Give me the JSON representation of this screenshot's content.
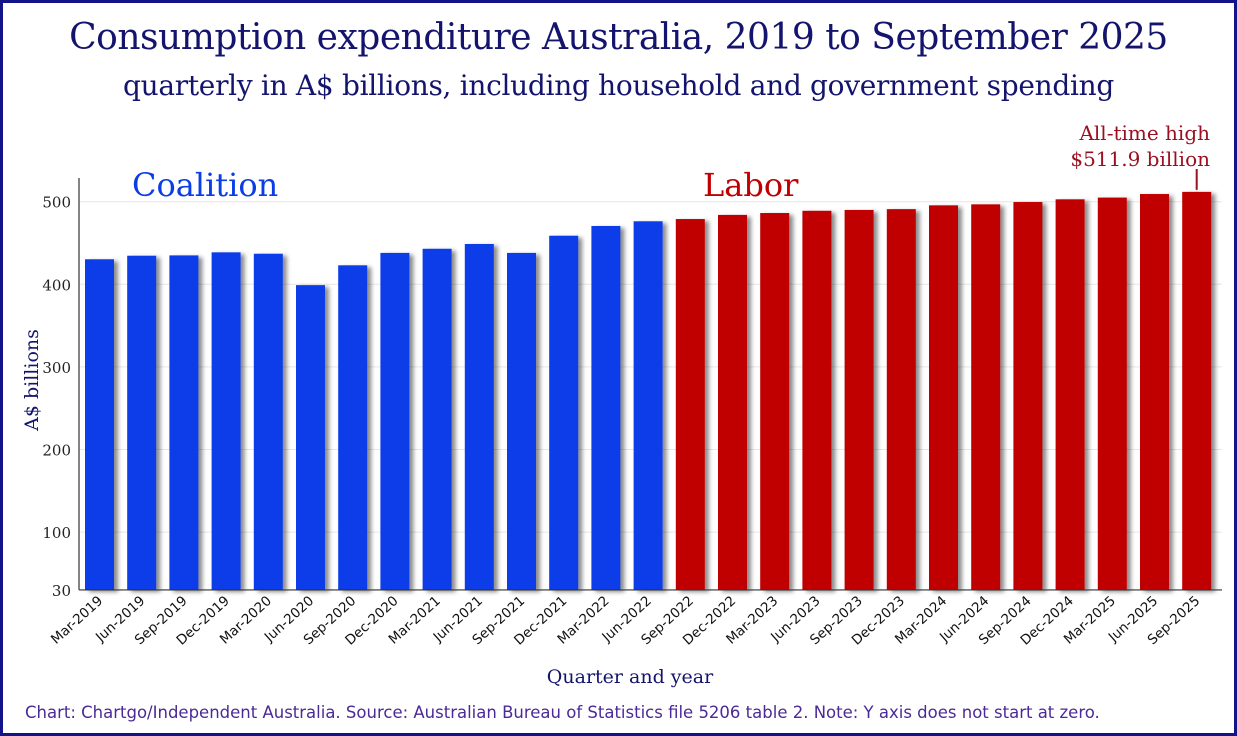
{
  "title": "Consumption expenditure Australia, 2019 to September 2025",
  "subtitle": "quarterly in A$ billions, including household and government spending",
  "footer": "Chart: Chartgo/Independent Australia. Source: Australian Bureau of Statistics file 5206 table 2. Note: Y axis does not start at zero.",
  "colors": {
    "coalition": "#0a3de8",
    "labor": "#c00000",
    "text": "#14146e",
    "annotation": "#9b1020",
    "footer": "#4b2a96"
  },
  "chart_data": {
    "type": "bar",
    "xlabel": "Quarter and year",
    "ylabel": "A$ billions",
    "ylim": [
      30,
      530
    ],
    "yticks": [
      30,
      100,
      200,
      300,
      400,
      500
    ],
    "grid": true,
    "categories": [
      "Mar-2019",
      "Jun-2019",
      "Sep-2019",
      "Dec-2019",
      "Mar-2020",
      "Jun-2020",
      "Sep-2020",
      "Dec-2020",
      "Mar-2021",
      "Jun-2021",
      "Sep-2021",
      "Dec-2021",
      "Mar-2022",
      "Jun-2022",
      "Sep-2022",
      "Dec-2022",
      "Mar-2023",
      "Jun-2023",
      "Sep-2023",
      "Dec-2023",
      "Mar-2024",
      "Jun-2024",
      "Sep-2024",
      "Dec-2024",
      "Mar-2025",
      "Jun-2025",
      "Sep-2025"
    ],
    "values": [
      430.3,
      434.6,
      435.0,
      438.7,
      437.0,
      399.0,
      423.0,
      438.0,
      443.0,
      448.8,
      438.0,
      458.8,
      470.6,
      476.3,
      479.0,
      484.0,
      486.3,
      489.0,
      490.0,
      491.0,
      495.6,
      496.8,
      499.6,
      502.9,
      505.0,
      509.3,
      511.9
    ],
    "groups": [
      {
        "label": "Coalition",
        "from": "Mar-2019",
        "to": "Jun-2022",
        "color": "#0a3de8"
      },
      {
        "label": "Labor",
        "from": "Sep-2022",
        "to": "Sep-2025",
        "color": "#c00000"
      }
    ],
    "annotations": [
      {
        "at": "Sep-2025",
        "lines": [
          "All-time high",
          "$511.9 billion"
        ]
      }
    ]
  }
}
